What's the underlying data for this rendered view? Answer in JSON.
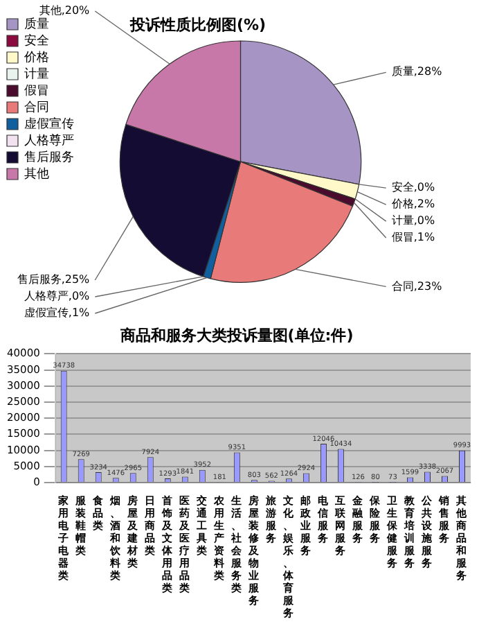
{
  "chart_data": [
    {
      "type": "pie",
      "title": "投诉性质比例图(%)",
      "categories": [
        "质量",
        "安全",
        "价格",
        "计量",
        "假冒",
        "合同",
        "虚假宣传",
        "人格尊严",
        "售后服务",
        "其他"
      ],
      "values": [
        28,
        0,
        2,
        0,
        1,
        23,
        1,
        0,
        25,
        20
      ],
      "colors": [
        "#a694c4",
        "#8b0a40",
        "#fff8c8",
        "#eaf4ee",
        "#4a0b2c",
        "#e97a7a",
        "#1060a0",
        "#f2e2f0",
        "#140c32",
        "#c878a8"
      ],
      "legend": "left",
      "value_labels": [
        "质量,28%",
        "安全,0%",
        "价格,2%",
        "计量,0%",
        "假冒,1%",
        "合同,23%",
        "虚假宣传,1%",
        "人格尊严,0%",
        "售后服务,25%",
        "其他,20%"
      ]
    },
    {
      "type": "bar",
      "title": "商品和服务大类投诉量图(单位:件)",
      "categories": [
        "家用电子电器类",
        "服装鞋帽类",
        "食品类",
        "烟、酒和饮料类",
        "房屋及建材类",
        "日用商品类",
        "首饰及文体用品类",
        "医药及医疗用品类",
        "交通工具类",
        "农用生产资料类",
        "生活、社会服务类",
        "房屋装修及物业服务",
        "旅游服务",
        "文化、娱乐、体育服务",
        "邮政业服务",
        "电信服务",
        "互联网服务",
        "金融服务",
        "保险服务",
        "卫生保健服务",
        "教育培训服务",
        "公共设施服务",
        "销售服务",
        "其他商品和服务"
      ],
      "values": [
        34738,
        7269,
        3234,
        1476,
        2965,
        7924,
        1293,
        1841,
        3952,
        181,
        9351,
        803,
        562,
        1264,
        2924,
        12046,
        10434,
        126,
        80,
        73,
        1599,
        3338,
        2067,
        9993
      ],
      "color": "#9999ff",
      "ylim": [
        0,
        40000
      ],
      "yticks": [
        0,
        5000,
        10000,
        15000,
        20000,
        25000,
        30000,
        35000,
        40000
      ],
      "grid": "y",
      "data_labels": true,
      "legend": false
    }
  ]
}
